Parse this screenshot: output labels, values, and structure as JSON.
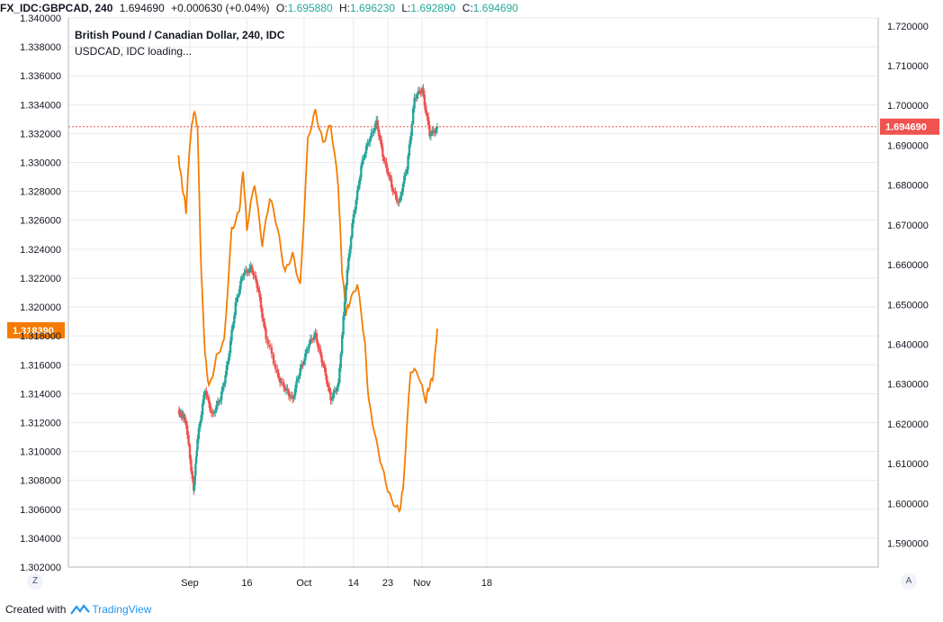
{
  "header": {
    "symbol": "FX_IDC:GBPCAD, 240",
    "last": "1.694690",
    "change": "+0.000630 (+0.04%)",
    "o_label": "O:",
    "o_value": "1.695880",
    "h_label": "H:",
    "h_value": "1.696230",
    "l_label": "L:",
    "l_value": "1.692890",
    "c_label": "C:",
    "c_value": "1.694690",
    "title": "British Pound / Canadian Dollar, 240, IDC",
    "overlay_status": "USDCAD, IDC loading..."
  },
  "footer": {
    "created_with": "Created with",
    "brand": "TradingView"
  },
  "buttons": {
    "left": "Z",
    "right": "A"
  },
  "colors": {
    "up": "#26a69a",
    "down": "#ef5350",
    "overlay": "#f57c00",
    "price_line": "#ef5350",
    "grid": "#e8eaef"
  },
  "chart_data": {
    "type": "line",
    "title": "British Pound / Canadian Dollar, 240, IDC",
    "x_ticks": [
      "Sep",
      "16",
      "Oct",
      "14",
      "23",
      "Nov",
      "18"
    ],
    "left_axis": {
      "ticks": [
        "1.340000",
        "1.338000",
        "1.336000",
        "1.334000",
        "1.332000",
        "1.330000",
        "1.328000",
        "1.326000",
        "1.324000",
        "1.322000",
        "1.320000",
        "1.318000",
        "1.316000",
        "1.314000",
        "1.312000",
        "1.310000",
        "1.308000",
        "1.306000",
        "1.304000",
        "1.302000"
      ],
      "range": [
        1.302,
        1.34
      ],
      "current_label": "1.318390",
      "current_value": 1.31839
    },
    "right_axis": {
      "ticks": [
        "1.720000",
        "1.710000",
        "1.700000",
        "1.690000",
        "1.680000",
        "1.670000",
        "1.660000",
        "1.650000",
        "1.640000",
        "1.630000",
        "1.620000",
        "1.610000",
        "1.600000",
        "1.590000"
      ],
      "range": [
        1.584,
        1.722
      ],
      "current_label": "1.694690",
      "current_value": 1.69469
    },
    "series": [
      {
        "name": "FX_IDC:GBPCAD",
        "type": "candlestick-close",
        "axis": "right",
        "x": [
          "Aug 29",
          "Aug 30",
          "Aug 31",
          "Sep 2",
          "Sep 3",
          "Sep 5",
          "Sep 7",
          "Sep 9",
          "Sep 11",
          "Sep 13",
          "Sep 15",
          "Sep 17",
          "Sep 19",
          "Sep 21",
          "Sep 24",
          "Sep 26",
          "Sep 28",
          "Sep 30",
          "Oct 2",
          "Oct 4",
          "Oct 6",
          "Oct 8",
          "Oct 10",
          "Oct 12",
          "Oct 14",
          "Oct 16",
          "Oct 18",
          "Oct 20",
          "Oct 22",
          "Oct 24",
          "Oct 26",
          "Oct 28",
          "Oct 30",
          "Nov 1",
          "Nov 3",
          "Nov 5"
        ],
        "values": [
          1.6235,
          1.622,
          1.6205,
          1.6025,
          1.6165,
          1.6285,
          1.622,
          1.6265,
          1.6355,
          1.6505,
          1.6575,
          1.6595,
          1.6535,
          1.6415,
          1.6325,
          1.6285,
          1.6265,
          1.6335,
          1.6395,
          1.6425,
          1.6345,
          1.6265,
          1.6295,
          1.6555,
          1.6725,
          1.6845,
          1.6915,
          1.6955,
          1.6865,
          1.6795,
          1.6755,
          1.6845,
          1.7015,
          1.7045,
          1.6925,
          1.6947
        ]
      },
      {
        "name": "USDCAD",
        "type": "line",
        "axis": "left",
        "x": [
          "Aug 29",
          "Aug 30",
          "Aug 31",
          "Sep 1",
          "Sep 2",
          "Sep 3",
          "Sep 4",
          "Sep 5",
          "Sep 6",
          "Sep 8",
          "Sep 10",
          "Sep 12",
          "Sep 14",
          "Sep 15",
          "Sep 16",
          "Sep 18",
          "Sep 20",
          "Sep 22",
          "Sep 24",
          "Sep 26",
          "Sep 28",
          "Sep 30",
          "Oct 2",
          "Oct 4",
          "Oct 6",
          "Oct 8",
          "Oct 10",
          "Oct 11",
          "Oct 12",
          "Oct 13",
          "Oct 15",
          "Oct 17",
          "Oct 18",
          "Oct 20",
          "Oct 22",
          "Oct 24",
          "Oct 26",
          "Oct 27",
          "Oct 29",
          "Oct 31",
          "Nov 2",
          "Nov 3",
          "Nov 4",
          "Nov 5"
        ],
        "values": [
          1.3305,
          1.3285,
          1.3265,
          1.3315,
          1.3335,
          1.3325,
          1.3225,
          1.3165,
          1.3145,
          1.3165,
          1.3175,
          1.3255,
          1.3265,
          1.3295,
          1.3255,
          1.3285,
          1.3245,
          1.3275,
          1.3255,
          1.3225,
          1.3235,
          1.3215,
          1.3315,
          1.3335,
          1.3315,
          1.3325,
          1.3285,
          1.3225,
          1.3195,
          1.3205,
          1.3215,
          1.3175,
          1.3135,
          1.3105,
          1.3085,
          1.3065,
          1.3058,
          1.3075,
          1.3155,
          1.3155,
          1.3135,
          1.3145,
          1.3155,
          1.3185
        ]
      }
    ],
    "grid": true,
    "legend": "top-left"
  }
}
